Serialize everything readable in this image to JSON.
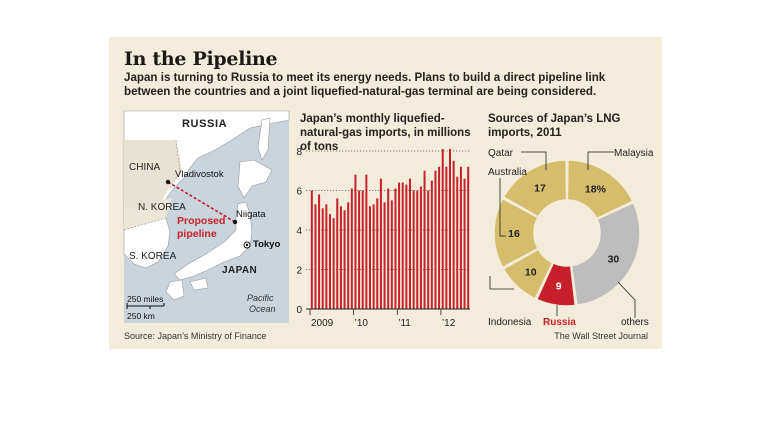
{
  "header": {
    "title": "In the Pipeline",
    "subtitle": "Japan is turning to Russia to meet its energy needs. Plans to build a direct pipeline link between the countries and a joint liquefied-natural-gas terminal are being considered."
  },
  "map": {
    "labels": {
      "russia": "RUSSIA",
      "china": "CHINA",
      "n_korea": "N. KOREA",
      "s_korea": "S. KOREA",
      "japan": "JAPAN",
      "vladivostok": "Vladivostok",
      "niigata": "Niigata",
      "tokyo": "Tokyo",
      "pipeline": "Proposed",
      "pipeline2": "pipeline",
      "ocean1": "Pacific",
      "ocean2": "Ocean",
      "scale_miles": "250 miles",
      "scale_km": "250 km"
    }
  },
  "footer": {
    "source": "Source: Japan’s Ministry of Finance",
    "credit": "The Wall Street Journal"
  },
  "chart_data": [
    {
      "type": "bar",
      "title": "Japan’s monthly liquefied-natural-gas imports, in millions of tons",
      "xlabel": "",
      "ylabel": "",
      "ylim": [
        0,
        8
      ],
      "yticks": [
        "0",
        "2",
        "4",
        "6",
        "8"
      ],
      "xtick_labels": [
        "2009",
        "’10",
        "’11",
        "’12"
      ],
      "grid": "dotted at 6 and 8",
      "bar_color": "#c8202a",
      "values": [
        6.0,
        5.3,
        5.8,
        5.1,
        5.3,
        4.8,
        4.6,
        5.6,
        5.2,
        5.0,
        5.4,
        6.1,
        6.8,
        6.0,
        6.0,
        6.8,
        5.2,
        5.3,
        5.6,
        6.6,
        5.4,
        6.1,
        5.5,
        6.1,
        6.4,
        6.4,
        6.3,
        6.6,
        6.0,
        6.0,
        6.2,
        7.0,
        6.0,
        6.5,
        7.0,
        7.2,
        8.1,
        7.2,
        8.1,
        7.5,
        6.7,
        7.2,
        6.6,
        7.2
      ]
    },
    {
      "type": "pie",
      "title": "Sources of Japan’s LNG imports, 2011",
      "slices": [
        {
          "name": "Malaysia",
          "value": 18,
          "label": "18%",
          "color": "#d6bd6b"
        },
        {
          "name": "others",
          "value": 30,
          "label": "30",
          "color": "#bdbdbd"
        },
        {
          "name": "Russia",
          "value": 9,
          "label": "9",
          "color": "#c8202a"
        },
        {
          "name": "Indonesia",
          "value": 10,
          "label": "10",
          "color": "#d6bd6b"
        },
        {
          "name": "Australia",
          "value": 16,
          "label": "16",
          "color": "#d6bd6b"
        },
        {
          "name": "Qatar",
          "value": 17,
          "label": "17",
          "color": "#d6bd6b"
        }
      ]
    }
  ]
}
